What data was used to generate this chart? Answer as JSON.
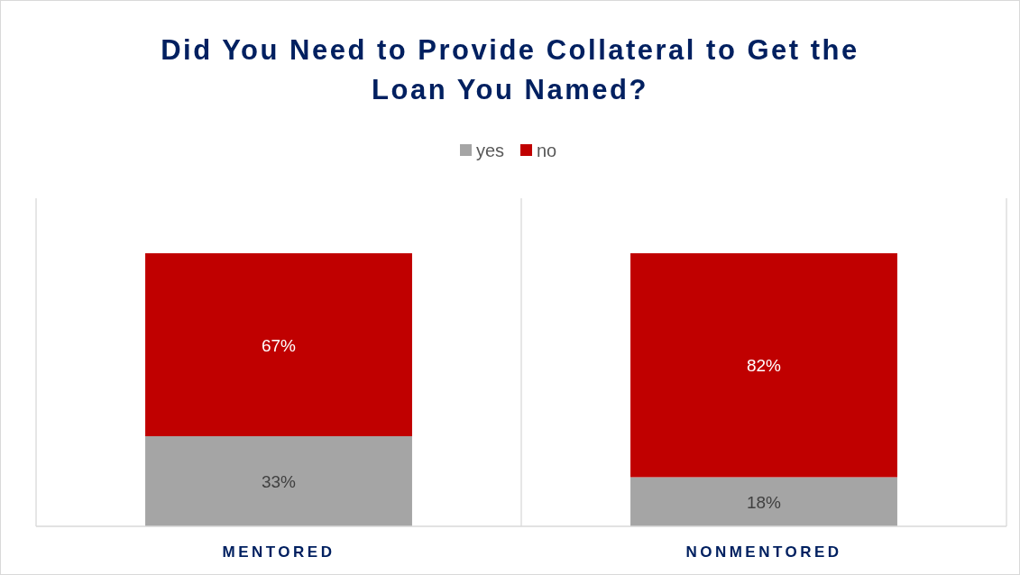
{
  "chart_data": {
    "type": "bar",
    "title": "Did You Need to Provide Collateral to Get the Loan You Named?",
    "categories": [
      "MENTORED",
      "NONMENTORED"
    ],
    "stacked": true,
    "series": [
      {
        "name": "yes",
        "color": "#a5a5a5",
        "values": [
          33,
          18
        ],
        "value_labels": [
          "33%",
          "18%"
        ]
      },
      {
        "name": "no",
        "color": "#c00000",
        "values": [
          67,
          82
        ],
        "value_labels": [
          "67%",
          "82%"
        ]
      }
    ],
    "tick_labels": "x",
    "grid": "x",
    "legend": "top"
  }
}
